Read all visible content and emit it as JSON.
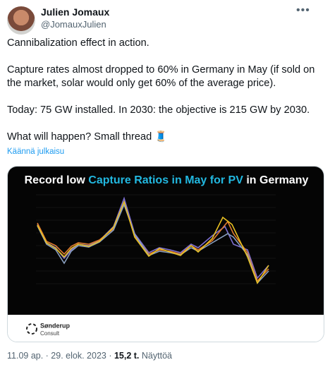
{
  "author": {
    "name": "Julien Jomaux",
    "handle": "@JomauxJulien"
  },
  "tweet": {
    "paragraphs": [
      "Cannibalization effect in action.",
      "Capture rates almost dropped to 60% in Germany in May (if sold on the market, solar would only get 60% of the average price).",
      "Today: 75 GW installed. In 2030: the objective is 215 GW by 2030.",
      "What will happen? Small thread 🧵"
    ],
    "translate": "Käännä julkaisu"
  },
  "media": {
    "title": [
      "Record low ",
      "Capture Ratios in May for PV",
      " in Germany"
    ],
    "brand": [
      "Sønderup",
      "Consult"
    ]
  },
  "footer": {
    "meta": "11.09 ap. · 29. elok. 2023 ·",
    "views": "15,2 t.",
    "views_label": "Näyttöä"
  }
}
